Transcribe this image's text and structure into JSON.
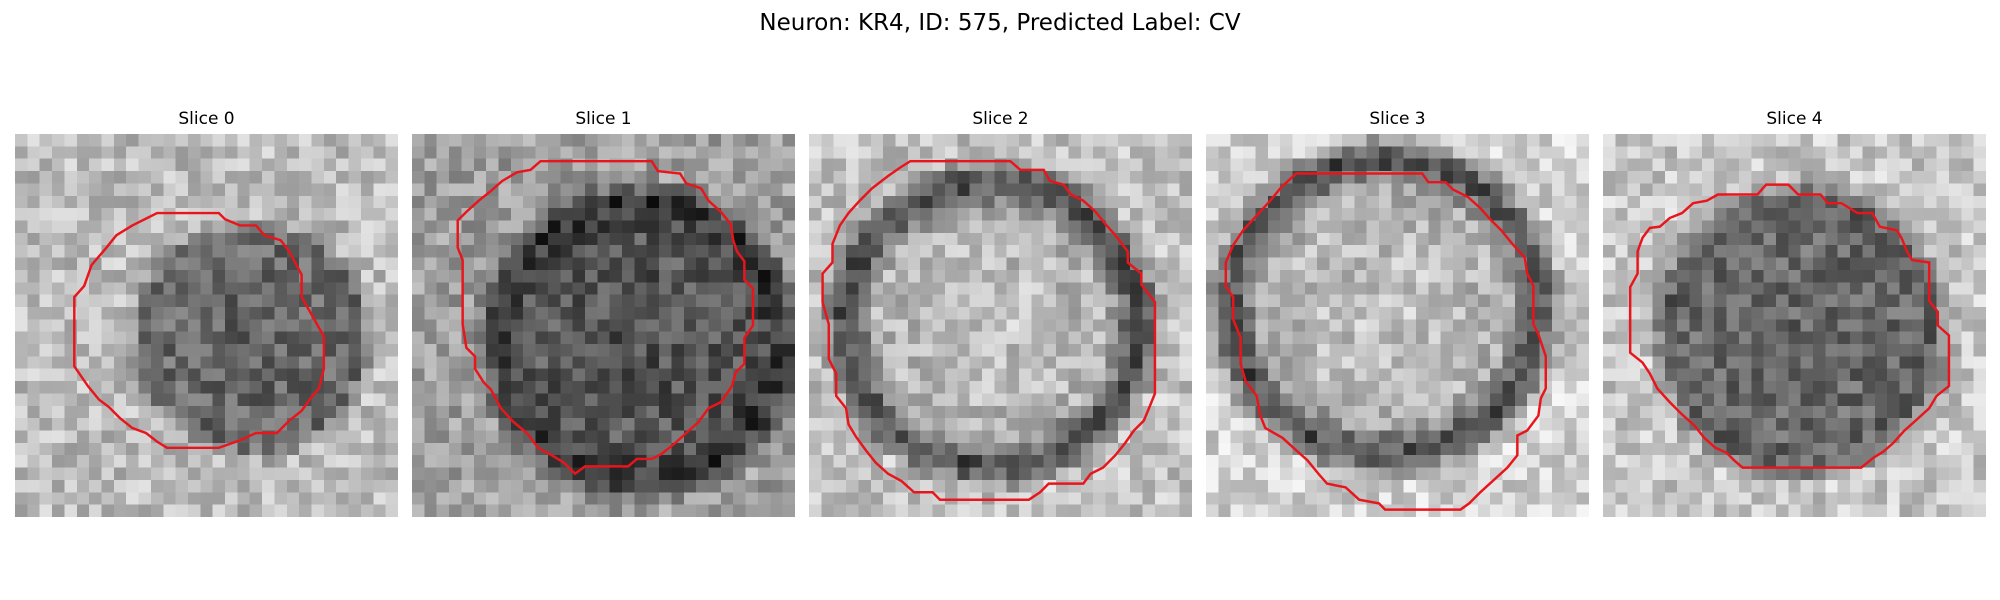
{
  "figure": {
    "title": "Neuron: KR4, ID: 575, Predicted Label: CV"
  },
  "panels": [
    {
      "label": "Slice 0",
      "cell": {
        "cx": 19.2,
        "cy": 16.6,
        "rx": 8.8,
        "ry": 8.6,
        "inner": 0.42,
        "ring": 0.4,
        "outside": 0.74
      },
      "contour": [
        [
          12.5,
          6.4
        ],
        [
          16.5,
          6.4
        ],
        [
          17.0,
          6.9
        ],
        [
          18.2,
          7.4
        ],
        [
          19.5,
          7.4
        ],
        [
          20.2,
          8.2
        ],
        [
          21.5,
          8.6
        ],
        [
          22.2,
          9.5
        ],
        [
          23.2,
          11.4
        ],
        [
          23.2,
          13.2
        ],
        [
          24.5,
          15.5
        ],
        [
          25.0,
          16.4
        ],
        [
          25.0,
          19.0
        ],
        [
          24.6,
          20.6
        ],
        [
          24.0,
          21.3
        ],
        [
          23.2,
          22.4
        ],
        [
          22.2,
          23.2
        ],
        [
          21.2,
          24.2
        ],
        [
          19.5,
          24.2
        ],
        [
          18.2,
          24.8
        ],
        [
          16.5,
          25.4
        ],
        [
          12.3,
          25.4
        ],
        [
          11.5,
          24.9
        ],
        [
          10.6,
          24.2
        ],
        [
          9.5,
          23.8
        ],
        [
          8.5,
          23.0
        ],
        [
          7.6,
          22.1
        ],
        [
          6.8,
          21.5
        ],
        [
          5.9,
          20.4
        ],
        [
          4.8,
          18.8
        ],
        [
          4.8,
          13.2
        ],
        [
          5.6,
          12.3
        ],
        [
          6.2,
          10.6
        ],
        [
          7.4,
          9.2
        ],
        [
          8.2,
          8.2
        ],
        [
          9.5,
          7.4
        ],
        [
          10.5,
          6.9
        ],
        [
          11.5,
          6.4
        ]
      ]
    },
    {
      "label": "Slice 1",
      "cell": {
        "cx": 18.5,
        "cy": 16.8,
        "rx": 11.6,
        "ry": 11.4,
        "inner": 0.35,
        "ring": 0.18,
        "outside": 0.62
      },
      "contour": [
        [
          12.3,
          2.2
        ],
        [
          19.4,
          2.2
        ],
        [
          19.9,
          3.0
        ],
        [
          21.7,
          3.2
        ],
        [
          22.2,
          4.0
        ],
        [
          23.4,
          4.4
        ],
        [
          24.0,
          5.4
        ],
        [
          25.0,
          6.3
        ],
        [
          25.8,
          7.3
        ],
        [
          26.0,
          8.6
        ],
        [
          26.3,
          9.5
        ],
        [
          26.9,
          10.3
        ],
        [
          26.9,
          11.8
        ],
        [
          27.6,
          12.5
        ],
        [
          27.6,
          15.5
        ],
        [
          26.9,
          16.5
        ],
        [
          26.9,
          18.6
        ],
        [
          26.2,
          19.3
        ],
        [
          25.9,
          20.4
        ],
        [
          25.0,
          21.7
        ],
        [
          24.0,
          22.2
        ],
        [
          23.2,
          23.3
        ],
        [
          22.2,
          24.2
        ],
        [
          21.2,
          25.1
        ],
        [
          20.2,
          25.9
        ],
        [
          19.4,
          26.3
        ],
        [
          18.2,
          26.3
        ],
        [
          17.5,
          26.9
        ],
        [
          14.0,
          26.9
        ],
        [
          13.2,
          27.5
        ],
        [
          12.3,
          26.6
        ],
        [
          11.3,
          26.0
        ],
        [
          10.2,
          25.4
        ],
        [
          9.3,
          24.2
        ],
        [
          8.2,
          23.3
        ],
        [
          7.2,
          22.2
        ],
        [
          6.4,
          20.7
        ],
        [
          5.8,
          20.1
        ],
        [
          5.1,
          19.0
        ],
        [
          5.1,
          18.0
        ],
        [
          4.4,
          17.3
        ],
        [
          4.1,
          15.4
        ],
        [
          4.1,
          10.2
        ],
        [
          3.7,
          9.2
        ],
        [
          3.7,
          7.0
        ],
        [
          4.4,
          6.3
        ],
        [
          5.4,
          5.4
        ],
        [
          6.4,
          4.6
        ],
        [
          7.3,
          3.8
        ],
        [
          8.5,
          3.1
        ],
        [
          9.6,
          2.9
        ],
        [
          10.4,
          2.2
        ]
      ]
    },
    {
      "label": "Slice 2",
      "cell": {
        "cx": 14.8,
        "cy": 15.4,
        "rx": 12.0,
        "ry": 11.6,
        "inner": 0.7,
        "ring": 0.24,
        "outside": 0.76
      },
      "contour": [
        [
          8.2,
          2.2
        ],
        [
          16.3,
          2.2
        ],
        [
          17.1,
          2.9
        ],
        [
          19.0,
          2.9
        ],
        [
          19.5,
          3.8
        ],
        [
          20.6,
          4.1
        ],
        [
          21.2,
          4.9
        ],
        [
          22.2,
          5.4
        ],
        [
          23.2,
          6.3
        ],
        [
          24.0,
          7.3
        ],
        [
          24.8,
          8.2
        ],
        [
          25.8,
          9.5
        ],
        [
          25.8,
          10.4
        ],
        [
          26.9,
          11.3
        ],
        [
          26.9,
          12.2
        ],
        [
          28.0,
          13.6
        ],
        [
          28.0,
          21.0
        ],
        [
          27.6,
          22.0
        ],
        [
          27.1,
          23.2
        ],
        [
          26.3,
          24.0
        ],
        [
          25.6,
          25.0
        ],
        [
          24.8,
          26.0
        ],
        [
          23.8,
          27.0
        ],
        [
          22.8,
          27.5
        ],
        [
          22.2,
          28.3
        ],
        [
          19.4,
          28.3
        ],
        [
          18.7,
          29.0
        ],
        [
          17.8,
          29.6
        ],
        [
          10.6,
          29.6
        ],
        [
          10.0,
          29.0
        ],
        [
          8.5,
          29.0
        ],
        [
          7.5,
          28.1
        ],
        [
          6.4,
          27.5
        ],
        [
          5.4,
          26.6
        ],
        [
          4.6,
          25.6
        ],
        [
          3.8,
          24.5
        ],
        [
          3.2,
          23.5
        ],
        [
          3.0,
          22.2
        ],
        [
          2.2,
          21.2
        ],
        [
          2.2,
          19.4
        ],
        [
          1.6,
          18.2
        ],
        [
          1.6,
          15.4
        ],
        [
          1.1,
          13.6
        ],
        [
          1.1,
          11.3
        ],
        [
          1.9,
          10.4
        ],
        [
          1.9,
          8.9
        ],
        [
          2.5,
          7.4
        ],
        [
          3.2,
          6.4
        ],
        [
          4.1,
          5.4
        ],
        [
          5.1,
          4.4
        ],
        [
          6.4,
          3.4
        ],
        [
          7.4,
          2.7
        ]
      ]
    },
    {
      "label": "Slice 3",
      "cell": {
        "cx": 14.5,
        "cy": 14.0,
        "rx": 12.6,
        "ry": 12.0,
        "inner": 0.7,
        "ring": 0.26,
        "outside": 0.82
      },
      "contour": [
        [
          7.3,
          3.2
        ],
        [
          17.5,
          3.2
        ],
        [
          18.0,
          3.9
        ],
        [
          19.4,
          3.9
        ],
        [
          20.0,
          4.5
        ],
        [
          21.2,
          5.1
        ],
        [
          22.2,
          6.0
        ],
        [
          23.0,
          6.9
        ],
        [
          23.9,
          7.8
        ],
        [
          24.8,
          8.9
        ],
        [
          25.8,
          10.0
        ],
        [
          26.0,
          11.3
        ],
        [
          26.5,
          12.3
        ],
        [
          26.5,
          15.4
        ],
        [
          26.9,
          16.2
        ],
        [
          27.5,
          18.0
        ],
        [
          27.5,
          20.6
        ],
        [
          27.1,
          21.4
        ],
        [
          26.9,
          22.8
        ],
        [
          26.0,
          24.0
        ],
        [
          25.2,
          24.4
        ],
        [
          25.2,
          26.0
        ],
        [
          24.4,
          27.0
        ],
        [
          23.3,
          28.0
        ],
        [
          22.2,
          29.0
        ],
        [
          21.3,
          29.9
        ],
        [
          20.6,
          30.4
        ],
        [
          14.5,
          30.4
        ],
        [
          14.0,
          29.9
        ],
        [
          12.4,
          29.6
        ],
        [
          11.3,
          28.6
        ],
        [
          9.8,
          28.3
        ],
        [
          9.1,
          27.5
        ],
        [
          8.2,
          26.4
        ],
        [
          7.3,
          25.6
        ],
        [
          6.2,
          24.6
        ],
        [
          4.8,
          23.8
        ],
        [
          4.4,
          22.8
        ],
        [
          4.1,
          21.2
        ],
        [
          3.2,
          20.0
        ],
        [
          2.8,
          18.6
        ],
        [
          2.8,
          16.5
        ],
        [
          2.2,
          15.0
        ],
        [
          2.2,
          13.2
        ],
        [
          1.6,
          12.3
        ],
        [
          1.6,
          10.4
        ],
        [
          2.2,
          9.0
        ],
        [
          3.0,
          7.8
        ],
        [
          4.1,
          6.6
        ],
        [
          5.2,
          5.4
        ],
        [
          6.1,
          4.3
        ]
      ]
    },
    {
      "label": "Slice 4",
      "cell": {
        "cx": 16.0,
        "cy": 16.0,
        "rx": 10.8,
        "ry": 10.8,
        "inner": 0.42,
        "ring": 0.38,
        "outside": 0.78
      },
      "contour": [
        [
          14.2,
          4.1
        ],
        [
          15.0,
          4.1
        ],
        [
          15.8,
          4.9
        ],
        [
          17.6,
          4.9
        ],
        [
          18.2,
          5.6
        ],
        [
          19.3,
          5.6
        ],
        [
          20.6,
          6.4
        ],
        [
          21.8,
          6.4
        ],
        [
          22.4,
          7.5
        ],
        [
          23.8,
          7.8
        ],
        [
          24.2,
          8.5
        ],
        [
          24.6,
          9.5
        ],
        [
          25.0,
          10.2
        ],
        [
          26.4,
          10.4
        ],
        [
          26.4,
          13.5
        ],
        [
          27.1,
          14.4
        ],
        [
          27.1,
          15.5
        ],
        [
          28.0,
          16.3
        ],
        [
          28.0,
          20.4
        ],
        [
          27.0,
          21.2
        ],
        [
          26.4,
          22.2
        ],
        [
          25.3,
          23.2
        ],
        [
          24.4,
          24.0
        ],
        [
          23.5,
          25.0
        ],
        [
          22.7,
          25.7
        ],
        [
          21.9,
          26.2
        ],
        [
          20.9,
          27.0
        ],
        [
          11.3,
          27.0
        ],
        [
          10.6,
          26.4
        ],
        [
          10.0,
          25.8
        ],
        [
          9.1,
          25.4
        ],
        [
          8.2,
          24.6
        ],
        [
          7.4,
          23.6
        ],
        [
          6.4,
          22.7
        ],
        [
          5.4,
          21.7
        ],
        [
          4.4,
          20.6
        ],
        [
          3.8,
          19.4
        ],
        [
          3.2,
          18.5
        ],
        [
          2.2,
          17.7
        ],
        [
          2.2,
          12.4
        ],
        [
          2.8,
          11.3
        ],
        [
          2.8,
          9.5
        ],
        [
          3.2,
          8.4
        ],
        [
          3.8,
          7.6
        ],
        [
          4.6,
          7.5
        ],
        [
          5.4,
          6.8
        ],
        [
          6.4,
          6.4
        ],
        [
          7.3,
          5.6
        ],
        [
          8.4,
          5.4
        ],
        [
          9.3,
          4.9
        ],
        [
          11.4,
          4.9
        ],
        [
          12.5,
          4.9
        ],
        [
          13.2,
          4.1
        ]
      ]
    }
  ],
  "colors": {
    "contour": "#e8161c"
  }
}
